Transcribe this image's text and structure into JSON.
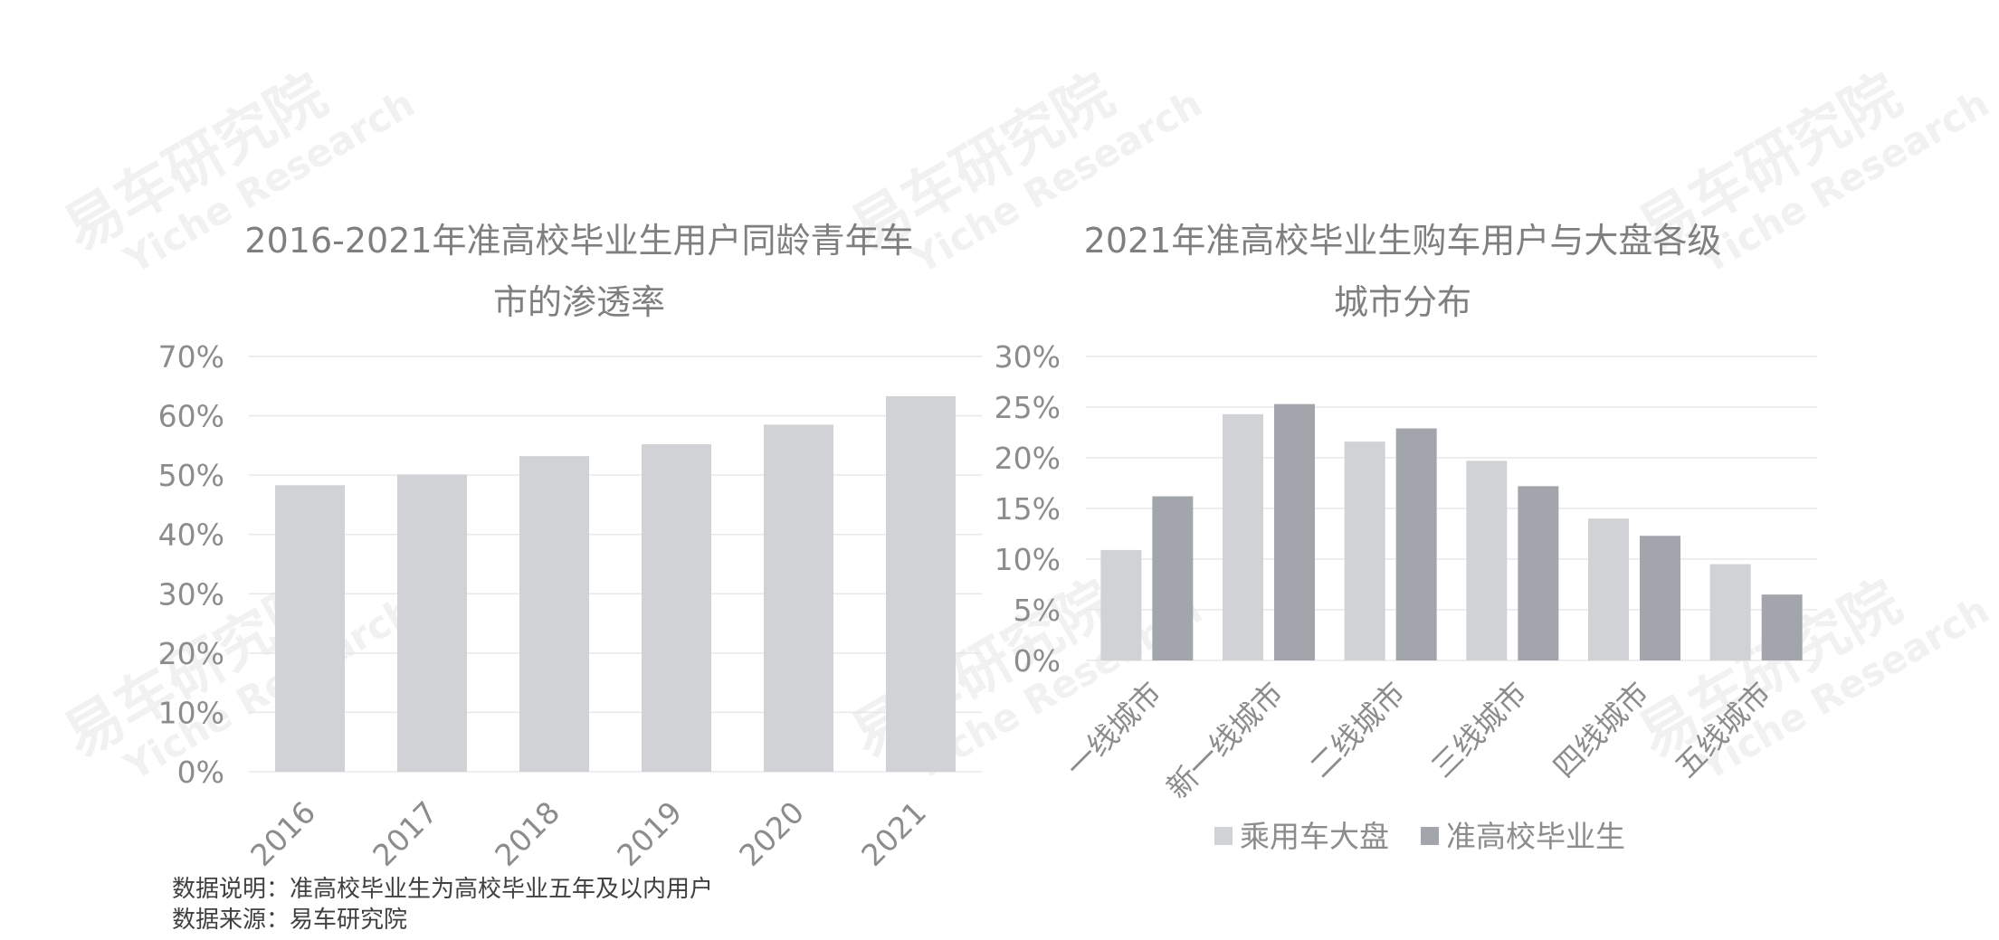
{
  "watermark": {
    "cn": "易车研究院",
    "en": "Yiche Research"
  },
  "chart_data": [
    {
      "type": "bar",
      "title": "2016-2021年准高校毕业生用户同龄青年车市的渗透率",
      "title_lines": [
        "2016-2021年准高校毕业生用户同龄青年车",
        "市的渗透率"
      ],
      "categories": [
        "2016",
        "2017",
        "2018",
        "2019",
        "2020",
        "2021"
      ],
      "values": [
        48.3,
        50.1,
        53.2,
        55.2,
        58.5,
        63.3
      ],
      "ylim": [
        0,
        70
      ],
      "yticks": [
        "0%",
        "10%",
        "20%",
        "30%",
        "40%",
        "50%",
        "60%",
        "70%"
      ],
      "grid": true,
      "color": "#d0d2d5"
    },
    {
      "type": "bar",
      "title": "2021年准高校毕业生购车用户与大盘各级城市分布",
      "title_lines": [
        "2021年准高校毕业生购车用户与大盘各级",
        "城市分布"
      ],
      "categories": [
        "一线城市",
        "新一线城市",
        "二线城市",
        "三线城市",
        "四线城市",
        "五线城市"
      ],
      "series": [
        {
          "name": "乘用车大盘",
          "values": [
            10.9,
            24.3,
            21.6,
            19.7,
            14.0,
            9.5
          ],
          "color": "#d0d2d5"
        },
        {
          "name": "准高校毕业生",
          "values": [
            16.2,
            25.3,
            22.9,
            17.2,
            12.3,
            6.5
          ],
          "color": "#a2a6ac"
        }
      ],
      "ylim": [
        0,
        30
      ],
      "yticks": [
        "0%",
        "5%",
        "10%",
        "15%",
        "20%",
        "25%",
        "30%"
      ],
      "grid": true,
      "legend": "bottom"
    }
  ],
  "notes": {
    "line1": "数据说明：准高校毕业生为高校毕业五年及以内用户",
    "line2": "数据来源：易车研究院"
  }
}
